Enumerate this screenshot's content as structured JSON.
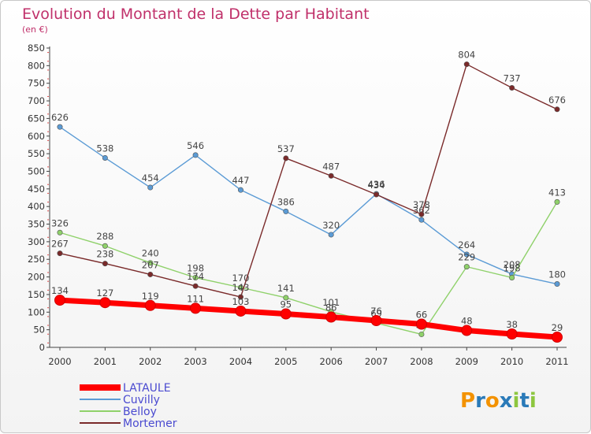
{
  "chart_data": {
    "type": "line",
    "title": "Evolution du Montant de la Dette par Habitant",
    "subtitle": "(en €)",
    "xlabel": "",
    "ylabel": "",
    "x": [
      "2000",
      "2001",
      "2002",
      "2003",
      "2004",
      "2005",
      "2006",
      "2007",
      "2008",
      "2009",
      "2010",
      "2011"
    ],
    "ylim": [
      0,
      850
    ],
    "yticks": [
      0,
      50,
      100,
      150,
      200,
      250,
      300,
      350,
      400,
      450,
      500,
      550,
      600,
      650,
      700,
      750,
      800,
      850
    ],
    "grid": false,
    "legend": "bottom-left",
    "series": [
      {
        "name": "LATAULE",
        "color": "#ff0000",
        "values": [
          134,
          127,
          119,
          111,
          103,
          95,
          86,
          76,
          66,
          48,
          38,
          29
        ],
        "labels": [
          "134",
          "127",
          "119",
          "111",
          "103",
          "95",
          "86",
          "76",
          "66",
          "48",
          "38",
          "29"
        ]
      },
      {
        "name": "Cuvilly",
        "color": "#5b9bd5",
        "values": [
          626,
          538,
          454,
          546,
          447,
          386,
          320,
          436,
          362,
          264,
          208,
          180
        ],
        "labels": [
          "626",
          "538",
          "454",
          "546",
          "447",
          "386",
          "320",
          "436",
          "362",
          "264",
          "208",
          "180"
        ]
      },
      {
        "name": "Belloy",
        "color": "#8fd16a",
        "values": [
          326,
          288,
          240,
          198,
          170,
          141,
          101,
          69,
          37,
          229,
          198,
          413
        ],
        "labels": [
          "326",
          "288",
          "240",
          "198",
          "170",
          "141",
          "101",
          "69",
          "37",
          "229",
          "198",
          "413"
        ]
      },
      {
        "name": "Mortemer",
        "color": "#7a2a2a",
        "values": [
          267,
          238,
          207,
          174,
          143,
          537,
          487,
          434,
          378,
          804,
          737,
          676
        ],
        "labels": [
          "267",
          "238",
          "207",
          "174",
          "143",
          "537",
          "487",
          "434",
          "378",
          "804",
          "737",
          "676"
        ]
      }
    ]
  },
  "brand": {
    "text": "Proxiti",
    "letters": [
      "P",
      "r",
      "o",
      "x",
      "i",
      "t",
      "i"
    ],
    "colors": [
      "#f39200",
      "#2a7ab8",
      "#f39200",
      "#2a7ab8",
      "#8dc63f",
      "#2a7ab8",
      "#8dc63f"
    ]
  },
  "colors": {
    "title": "#c0306a",
    "legend_text": "#4a4ad0",
    "axis": "#444444"
  }
}
